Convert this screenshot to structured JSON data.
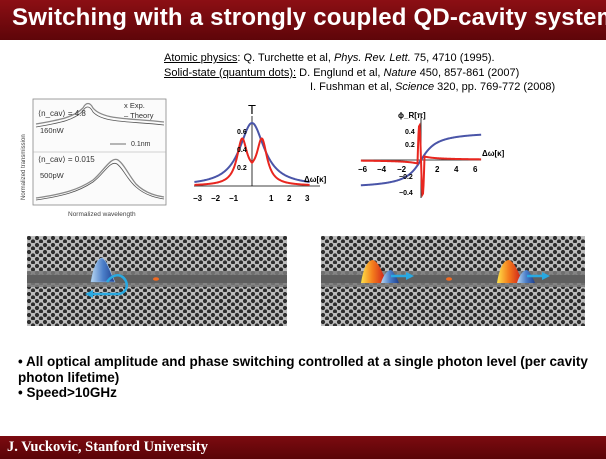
{
  "slide": {
    "title": "Switching with a strongly coupled QD-cavity system",
    "footer": "J. Vuckovic, Stanford University"
  },
  "references": {
    "atomic_label": "Atomic physics",
    "atomic_text": ": Q. Turchette et al, ",
    "atomic_journal": "Phys. Rev. Lett.",
    "atomic_rest": " 75, 4710 (1995).",
    "solid_label": "Solid-state (quantum dots):",
    "solid_text": " D. Englund et al, ",
    "solid_journal": "Nature",
    "solid_rest": " 450, 857-861 (2007)",
    "fushman_text": "I. Fushman et al, ",
    "fushman_journal": "Science",
    "fushman_rest": " 320, pp. 769-772 (2008)"
  },
  "figure_exp": {
    "ylabel": "Normalized transmission",
    "xlabel": "Normalized wavelength",
    "top_label": "⟨n_cav⟩ = 4.8",
    "top_power": "160nW",
    "bottom_label": "⟨n_cav⟩ = 0.015",
    "bottom_power": "500pW",
    "legend_exp": "x Exp.",
    "legend_theory": "– Theory",
    "scale": "0.1nm"
  },
  "figure_trans": {
    "marker": "T",
    "yticks": [
      "0.6",
      "0.4",
      "0.2"
    ],
    "xticks": [
      "−3",
      "−2",
      "−1",
      "1",
      "2",
      "3"
    ],
    "xlabel": "Δω[κ]",
    "colors": {
      "red": "#e8261f",
      "blue": "#4a55a8"
    }
  },
  "figure_phase": {
    "ylabel": "ϕ_R[π]",
    "yticks": [
      "0.4",
      "0.2",
      "−0.2",
      "−0.4"
    ],
    "xticks": [
      "−6",
      "−4",
      "−2",
      "2",
      "4",
      "6"
    ],
    "xlabel": "Δω[κ]"
  },
  "bullets": [
    "• All optical amplitude and phase switching controlled at a single photon level (per cavity photon lifetime)",
    "• Speed>10GHz"
  ]
}
